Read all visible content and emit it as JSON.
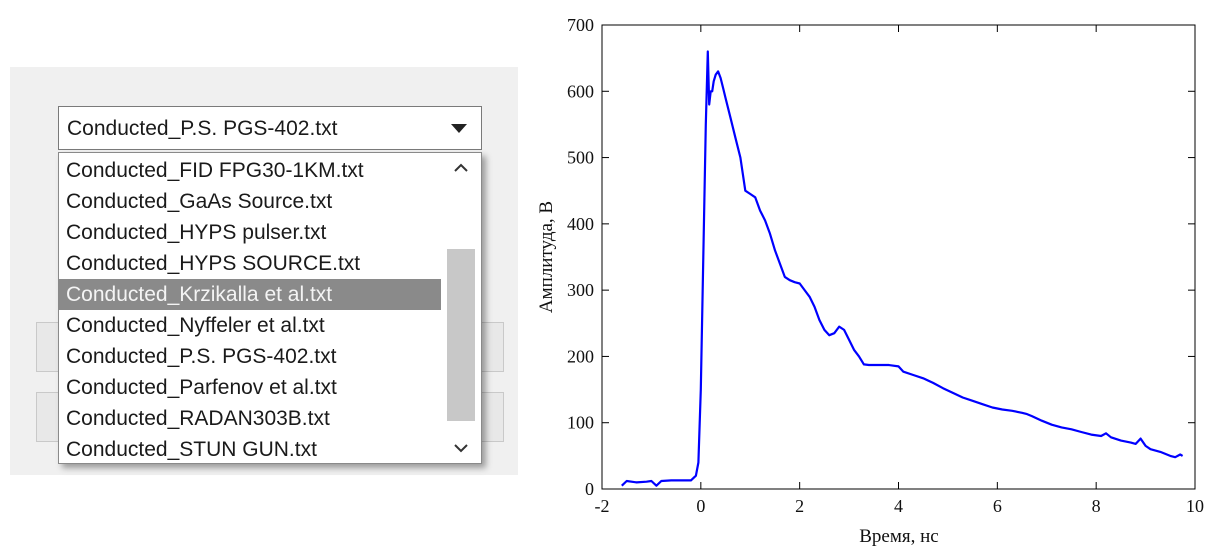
{
  "dropdown": {
    "selected_value": "Conducted_P.S. PGS-402.txt",
    "items": [
      "Conducted_FID FPG30-1KM.txt",
      "Conducted_GaAs Source.txt",
      "Conducted_HYPS pulser.txt",
      "Conducted_HYPS SOURCE.txt",
      "Conducted_Krzikalla et al.txt",
      "Conducted_Nyffeler et al.txt",
      "Conducted_P.S. PGS-402.txt",
      "Conducted_Parfenov et al.txt",
      "Conducted_RADAN303B.txt",
      "Conducted_STUN GUN.txt"
    ],
    "highlighted_index": 4
  },
  "chart_data": {
    "type": "line",
    "xlabel": "Время, нс",
    "ylabel": "Амплитуда, В",
    "xlim": [
      -2,
      10
    ],
    "ylim": [
      0,
      700
    ],
    "xticks": [
      -2,
      0,
      2,
      4,
      6,
      8,
      10
    ],
    "yticks": [
      0,
      100,
      200,
      300,
      400,
      500,
      600,
      700
    ],
    "grid": false,
    "line_color": "#0000ff",
    "series": [
      {
        "x": [
          -1.6,
          -1.5,
          -1.3,
          -1.1,
          -1.0,
          -0.9,
          -0.8,
          -0.6,
          -0.4,
          -0.2,
          -0.1,
          -0.05,
          0.0,
          0.05,
          0.1,
          0.14,
          0.17,
          0.2,
          0.23,
          0.26,
          0.3,
          0.35,
          0.4,
          0.45,
          0.5,
          0.6,
          0.7,
          0.8,
          0.9,
          1.0,
          1.1,
          1.2,
          1.3,
          1.4,
          1.5,
          1.6,
          1.7,
          1.8,
          1.9,
          2.0,
          2.1,
          2.2,
          2.3,
          2.4,
          2.5,
          2.6,
          2.7,
          2.8,
          2.9,
          3.0,
          3.1,
          3.2,
          3.3,
          3.4,
          3.5,
          3.8,
          4.0,
          4.1,
          4.3,
          4.5,
          4.7,
          4.9,
          5.1,
          5.3,
          5.5,
          5.7,
          5.9,
          6.1,
          6.3,
          6.5,
          6.6,
          6.7,
          6.9,
          7.1,
          7.3,
          7.5,
          7.7,
          7.9,
          8.1,
          8.2,
          8.3,
          8.5,
          8.7,
          8.8,
          8.9,
          9.0,
          9.1,
          9.3,
          9.5,
          9.6,
          9.7,
          9.75
        ],
        "y": [
          5,
          12,
          10,
          11,
          12,
          5,
          12,
          13,
          13,
          13,
          20,
          40,
          150,
          350,
          550,
          660,
          580,
          600,
          600,
          615,
          625,
          630,
          620,
          605,
          590,
          560,
          530,
          500,
          450,
          445,
          440,
          420,
          405,
          385,
          360,
          340,
          320,
          315,
          312,
          310,
          300,
          290,
          275,
          255,
          240,
          232,
          235,
          245,
          240,
          225,
          210,
          200,
          188,
          187,
          187,
          187,
          185,
          177,
          172,
          167,
          160,
          152,
          145,
          138,
          133,
          128,
          123,
          120,
          118,
          115,
          113,
          110,
          103,
          97,
          93,
          90,
          86,
          82,
          80,
          84,
          78,
          73,
          70,
          68,
          76,
          65,
          60,
          56,
          50,
          48,
          52,
          50
        ]
      }
    ]
  }
}
